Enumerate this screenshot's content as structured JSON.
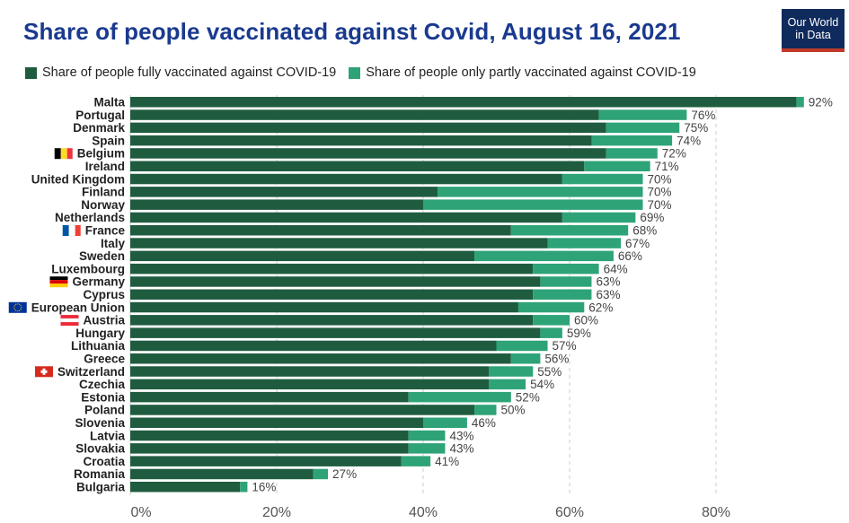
{
  "header": {
    "title": "Share of people vaccinated against Covid, August 16, 2021",
    "logo_line1": "Our World",
    "logo_line2": "in Data"
  },
  "colors": {
    "full": "#1f5c3f",
    "partial": "#2ea377",
    "grid": "#cccccc",
    "title": "#1a3a8f",
    "logo_bg": "#0f2a5c",
    "logo_accent": "#c0392b"
  },
  "chart_data": {
    "type": "bar",
    "orientation": "horizontal",
    "stacked": true,
    "title": "Share of people vaccinated against Covid, August 16, 2021",
    "legend_position": "top-left",
    "grid": true,
    "xlim": [
      0,
      92
    ],
    "x_ticks": [
      "0%",
      "20%",
      "40%",
      "60%",
      "80%"
    ],
    "x_tick_values": [
      0,
      20,
      40,
      60,
      80
    ],
    "categories": [
      "Malta",
      "Portugal",
      "Denmark",
      "Spain",
      "Belgium",
      "Ireland",
      "United Kingdom",
      "Finland",
      "Norway",
      "Netherlands",
      "France",
      "Italy",
      "Sweden",
      "Luxembourg",
      "Germany",
      "Cyprus",
      "European Union",
      "Austria",
      "Hungary",
      "Lithuania",
      "Greece",
      "Switzerland",
      "Czechia",
      "Estonia",
      "Poland",
      "Slovenia",
      "Latvia",
      "Slovakia",
      "Croatia",
      "Romania",
      "Bulgaria"
    ],
    "series": [
      {
        "name": "Share of people fully vaccinated against COVID-19",
        "values": [
          91,
          64,
          65,
          63,
          65,
          62,
          59,
          42,
          40,
          59,
          52,
          57,
          47,
          55,
          56,
          55,
          53,
          55,
          56,
          50,
          52,
          49,
          49,
          38,
          47,
          40,
          38,
          38,
          37,
          25,
          15
        ]
      },
      {
        "name": "Share of people only partly vaccinated against COVID-19",
        "values": [
          1,
          12,
          10,
          11,
          7,
          9,
          11,
          28,
          30,
          10,
          16,
          10,
          19,
          9,
          7,
          8,
          9,
          5,
          3,
          7,
          4,
          6,
          5,
          14,
          3,
          6,
          5,
          5,
          4,
          2,
          1
        ]
      }
    ],
    "total_labels": [
      "92%",
      "76%",
      "75%",
      "74%",
      "72%",
      "71%",
      "70%",
      "70%",
      "70%",
      "69%",
      "68%",
      "67%",
      "66%",
      "64%",
      "63%",
      "63%",
      "62%",
      "60%",
      "59%",
      "57%",
      "56%",
      "55%",
      "54%",
      "52%",
      "50%",
      "46%",
      "43%",
      "43%",
      "41%",
      "27%",
      "16%"
    ],
    "flags": {
      "Belgium": "belgium-flag-icon",
      "France": "france-flag-icon",
      "Germany": "germany-flag-icon",
      "European Union": "eu-flag-icon",
      "Austria": "austria-flag-icon",
      "Switzerland": "switzerland-flag-icon"
    }
  }
}
